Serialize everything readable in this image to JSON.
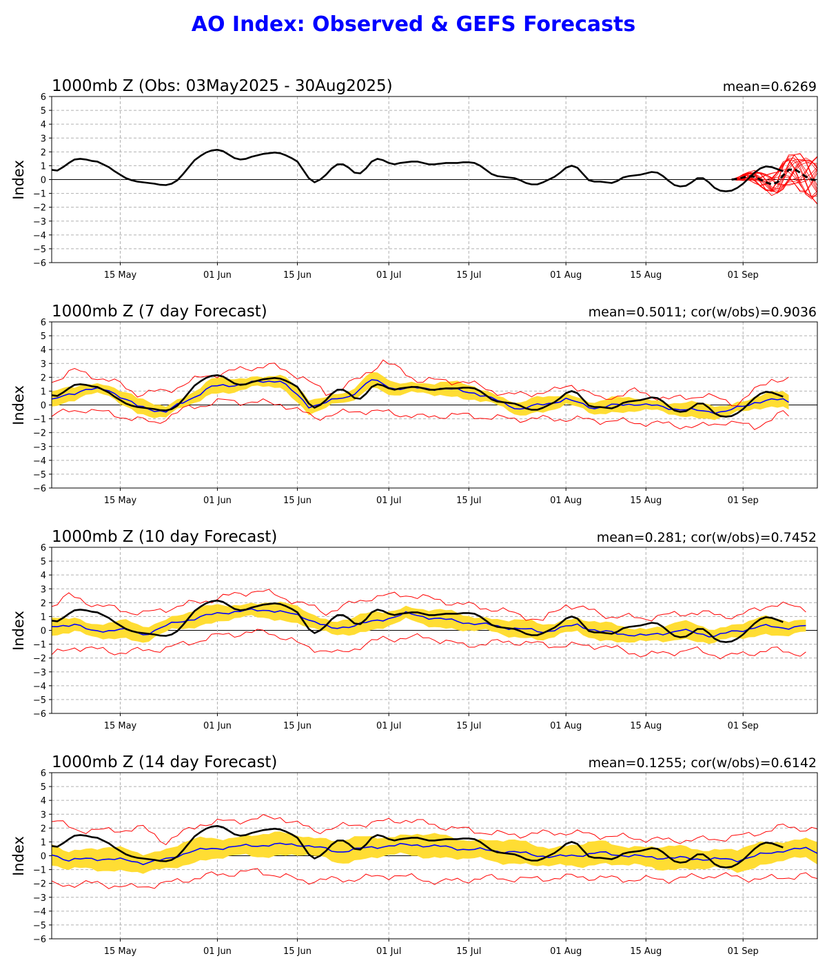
{
  "title": "AO Index: Observed & GEFS Forecasts",
  "colors": {
    "title": "#0000ff",
    "observed": "#000000",
    "ensemble_mean": "#0000ff",
    "spread_band": "#ffdd33",
    "extremes": "#ff0000",
    "grid": "#b0b0b0"
  },
  "chart_data": [
    {
      "type": "line",
      "title": "1000mb Z (Obs: 03May2025 - 30Aug2025)",
      "stat_text": "mean=0.6269",
      "ylabel": "Index",
      "ylim": [
        -6,
        6
      ],
      "yticks": [
        6,
        5,
        4,
        3,
        2,
        1,
        0,
        -1,
        -2,
        -3,
        -4,
        -5,
        -6
      ],
      "xlim": [
        "2025-05-03",
        "2025-09-14"
      ],
      "xticks": [
        {
          "date": "2025-05-15",
          "label": "15 May"
        },
        {
          "date": "2025-06-01",
          "label": "01 Jun"
        },
        {
          "date": "2025-06-15",
          "label": "15 Jun"
        },
        {
          "date": "2025-07-01",
          "label": "01 Jul"
        },
        {
          "date": "2025-07-15",
          "label": "15 Jul"
        },
        {
          "date": "2025-08-01",
          "label": "01 Aug"
        },
        {
          "date": "2025-08-15",
          "label": "15 Aug"
        },
        {
          "date": "2025-09-01",
          "label": "01 Sep"
        }
      ],
      "grid": true,
      "observed": {
        "start": "2025-05-03",
        "values": [
          0.7,
          0.65,
          0.9,
          1.2,
          1.45,
          1.5,
          1.45,
          1.35,
          1.3,
          1.1,
          0.9,
          0.6,
          0.35,
          0.1,
          -0.05,
          -0.15,
          -0.2,
          -0.25,
          -0.3,
          -0.38,
          -0.4,
          -0.3,
          -0.05,
          0.4,
          0.9,
          1.4,
          1.7,
          1.95,
          2.1,
          2.15,
          2.05,
          1.8,
          1.55,
          1.45,
          1.5,
          1.65,
          1.75,
          1.85,
          1.9,
          1.95,
          1.9,
          1.75,
          1.55,
          1.3,
          0.7,
          0.1,
          -0.2,
          0.0,
          0.35,
          0.8,
          1.1,
          1.1,
          0.85,
          0.5,
          0.45,
          0.8,
          1.3,
          1.5,
          1.4,
          1.2,
          1.1,
          1.2,
          1.25,
          1.3,
          1.3,
          1.2,
          1.1,
          1.1,
          1.15,
          1.2,
          1.2,
          1.2,
          1.25,
          1.25,
          1.2,
          1.0,
          0.7,
          0.4,
          0.25,
          0.2,
          0.15,
          0.1,
          -0.05,
          -0.25,
          -0.35,
          -0.35,
          -0.2,
          0.0,
          0.2,
          0.5,
          0.85,
          1.0,
          0.85,
          0.4,
          -0.05,
          -0.15,
          -0.15,
          -0.2,
          -0.25,
          -0.1,
          0.15,
          0.25,
          0.3,
          0.35,
          0.45,
          0.55,
          0.5,
          0.25,
          -0.1,
          -0.4,
          -0.5,
          -0.45,
          -0.2,
          0.1,
          0.1,
          -0.2,
          -0.6,
          -0.8,
          -0.85,
          -0.8,
          -0.6,
          -0.3,
          0.1,
          0.5,
          0.8,
          0.95,
          0.9,
          0.75,
          0.6
        ]
      },
      "forecast_members_start": "2025-08-30",
      "forecast_days": 16,
      "forecast_mean": [
        0.0,
        0.05,
        0.15,
        0.25,
        0.2,
        0.0,
        -0.2,
        -0.35,
        -0.2,
        0.3,
        0.7,
        0.75,
        0.5,
        0.2,
        0.0,
        -0.05,
        -0.1
      ]
    },
    {
      "type": "line",
      "title": "1000mb Z (7 day Forecast)",
      "stat_text": "mean=0.5011; cor(w/obs)=0.9036",
      "ylabel": "Index",
      "ylim": [
        -6,
        6
      ],
      "yticks": [
        6,
        5,
        4,
        3,
        2,
        1,
        0,
        -1,
        -2,
        -3,
        -4,
        -5,
        -6
      ],
      "xlim": [
        "2025-05-03",
        "2025-09-14"
      ],
      "grid": true,
      "forecast_start": "2025-05-03",
      "forecast_end": "2025-09-09",
      "ensemble_mean_keypoints": [
        [
          0,
          0.3
        ],
        [
          3,
          0.8
        ],
        [
          6,
          1.1
        ],
        [
          10,
          1.1
        ],
        [
          15,
          -0.1
        ],
        [
          20,
          -0.5
        ],
        [
          28,
          1.3
        ],
        [
          40,
          1.8
        ],
        [
          45,
          -0.1
        ],
        [
          52,
          0.6
        ],
        [
          56,
          1.8
        ],
        [
          60,
          1.2
        ],
        [
          68,
          1.2
        ],
        [
          74,
          0.9
        ],
        [
          82,
          -0.3
        ],
        [
          90,
          0.4
        ],
        [
          95,
          -0.2
        ],
        [
          102,
          0.1
        ],
        [
          108,
          -0.2
        ],
        [
          112,
          -0.4
        ],
        [
          118,
          -0.5
        ],
        [
          123,
          0.2
        ],
        [
          128,
          0.4
        ],
        [
          133,
          -0.3
        ]
      ],
      "spread_halfwidth": 0.45,
      "extreme_upper_keypoints": [
        [
          0,
          1.7
        ],
        [
          4,
          2.5
        ],
        [
          8,
          2.0
        ],
        [
          12,
          1.5
        ],
        [
          15,
          0.8
        ],
        [
          20,
          1.0
        ],
        [
          27,
          2.1
        ],
        [
          38,
          2.9
        ],
        [
          44,
          2.0
        ],
        [
          48,
          0.8
        ],
        [
          54,
          1.9
        ],
        [
          58,
          3.2
        ],
        [
          64,
          1.8
        ],
        [
          72,
          1.7
        ],
        [
          80,
          0.7
        ],
        [
          88,
          1.0
        ],
        [
          91,
          1.5
        ],
        [
          96,
          0.4
        ],
        [
          102,
          1.0
        ],
        [
          108,
          0.4
        ],
        [
          114,
          0.7
        ],
        [
          120,
          0.1
        ],
        [
          126,
          1.9
        ],
        [
          131,
          1.7
        ],
        [
          135,
          1.0
        ]
      ],
      "extreme_lower_keypoints": [
        [
          0,
          -0.7
        ],
        [
          6,
          -0.3
        ],
        [
          12,
          -0.8
        ],
        [
          18,
          -1.3
        ],
        [
          24,
          -0.2
        ],
        [
          30,
          0.3
        ],
        [
          40,
          0.1
        ],
        [
          46,
          -0.9
        ],
        [
          54,
          -0.4
        ],
        [
          60,
          -0.6
        ],
        [
          65,
          -0.9
        ],
        [
          70,
          -0.7
        ],
        [
          80,
          -1.0
        ],
        [
          90,
          -1.0
        ],
        [
          100,
          -1.2
        ],
        [
          108,
          -1.4
        ],
        [
          113,
          -1.6
        ],
        [
          118,
          -1.2
        ],
        [
          123,
          -1.6
        ],
        [
          128,
          -0.6
        ],
        [
          133,
          -1.5
        ],
        [
          136,
          -1.6
        ]
      ]
    },
    {
      "type": "line",
      "title": "1000mb Z (10 day Forecast)",
      "stat_text": "mean=0.281; cor(w/obs)=0.7452",
      "ylabel": "Index",
      "ylim": [
        -6,
        6
      ],
      "yticks": [
        6,
        5,
        4,
        3,
        2,
        1,
        0,
        -1,
        -2,
        -3,
        -4,
        -5,
        -6
      ],
      "xlim": [
        "2025-05-03",
        "2025-09-14"
      ],
      "grid": true,
      "forecast_start": "2025-05-03",
      "forecast_end": "2025-09-12",
      "ensemble_mean_keypoints": [
        [
          0,
          0.2
        ],
        [
          4,
          0.5
        ],
        [
          7,
          -0.1
        ],
        [
          12,
          0.1
        ],
        [
          16,
          -0.3
        ],
        [
          22,
          0.6
        ],
        [
          30,
          1.3
        ],
        [
          38,
          1.5
        ],
        [
          44,
          1.0
        ],
        [
          49,
          0.1
        ],
        [
          56,
          0.6
        ],
        [
          62,
          1.2
        ],
        [
          70,
          0.7
        ],
        [
          78,
          0.3
        ],
        [
          86,
          -0.1
        ],
        [
          92,
          0.4
        ],
        [
          96,
          -0.1
        ],
        [
          104,
          -0.4
        ],
        [
          110,
          0.0
        ],
        [
          116,
          -0.4
        ],
        [
          124,
          0.3
        ],
        [
          128,
          0.2
        ],
        [
          132,
          0.3
        ],
        [
          134,
          -0.3
        ],
        [
          138,
          0.5
        ]
      ],
      "spread_halfwidth": 0.55,
      "extreme_upper_keypoints": [
        [
          0,
          1.8
        ],
        [
          3,
          2.5
        ],
        [
          8,
          1.8
        ],
        [
          16,
          1.2
        ],
        [
          24,
          1.9
        ],
        [
          30,
          2.4
        ],
        [
          36,
          2.9
        ],
        [
          42,
          2.2
        ],
        [
          48,
          1.3
        ],
        [
          56,
          2.4
        ],
        [
          62,
          2.6
        ],
        [
          70,
          2.0
        ],
        [
          78,
          1.5
        ],
        [
          86,
          0.7
        ],
        [
          90,
          1.9
        ],
        [
          98,
          1.0
        ],
        [
          104,
          0.9
        ],
        [
          112,
          1.3
        ],
        [
          120,
          1.0
        ],
        [
          126,
          1.9
        ],
        [
          132,
          1.6
        ],
        [
          138,
          1.8
        ]
      ],
      "extreme_lower_keypoints": [
        [
          0,
          -1.8
        ],
        [
          4,
          -1.2
        ],
        [
          12,
          -1.6
        ],
        [
          20,
          -1.3
        ],
        [
          30,
          -0.3
        ],
        [
          38,
          -0.1
        ],
        [
          44,
          -1.1
        ],
        [
          50,
          -1.7
        ],
        [
          58,
          -0.6
        ],
        [
          66,
          -0.5
        ],
        [
          72,
          -1.1
        ],
        [
          80,
          -0.8
        ],
        [
          88,
          -1.1
        ],
        [
          96,
          -1.1
        ],
        [
          104,
          -1.8
        ],
        [
          112,
          -1.4
        ],
        [
          118,
          -1.9
        ],
        [
          126,
          -1.4
        ],
        [
          132,
          -1.7
        ],
        [
          138,
          -1.0
        ]
      ]
    },
    {
      "type": "line",
      "title": "1000mb Z (14 day Forecast)",
      "stat_text": "mean=0.1255; cor(w/obs)=0.6142",
      "ylabel": "Index",
      "ylim": [
        -6,
        6
      ],
      "yticks": [
        6,
        5,
        4,
        3,
        2,
        1,
        0,
        -1,
        -2,
        -3,
        -4,
        -5,
        -6
      ],
      "xlim": [
        "2025-05-03",
        "2025-09-14"
      ],
      "grid": true,
      "forecast_start": "2025-05-03",
      "forecast_end": "2025-09-14",
      "ensemble_mean_keypoints": [
        [
          0,
          0.1
        ],
        [
          3,
          -0.3
        ],
        [
          10,
          -0.2
        ],
        [
          16,
          -0.5
        ],
        [
          20,
          -0.3
        ],
        [
          24,
          0.3
        ],
        [
          30,
          0.6
        ],
        [
          38,
          0.8
        ],
        [
          44,
          0.8
        ],
        [
          50,
          0.3
        ],
        [
          58,
          0.7
        ],
        [
          64,
          0.8
        ],
        [
          72,
          0.5
        ],
        [
          80,
          0.3
        ],
        [
          88,
          -0.1
        ],
        [
          96,
          0.2
        ],
        [
          104,
          -0.1
        ],
        [
          112,
          -0.2
        ],
        [
          120,
          -0.3
        ],
        [
          128,
          0.4
        ],
        [
          132,
          0.5
        ],
        [
          136,
          0.1
        ],
        [
          140,
          -0.2
        ],
        [
          142,
          -0.3
        ]
      ],
      "spread_halfwidth": 0.75,
      "extreme_upper_keypoints": [
        [
          0,
          2.6
        ],
        [
          4,
          1.9
        ],
        [
          10,
          1.8
        ],
        [
          16,
          2.0
        ],
        [
          20,
          1.0
        ],
        [
          26,
          2.3
        ],
        [
          34,
          2.6
        ],
        [
          40,
          2.8
        ],
        [
          46,
          1.8
        ],
        [
          54,
          2.3
        ],
        [
          62,
          2.6
        ],
        [
          70,
          2.0
        ],
        [
          80,
          1.5
        ],
        [
          90,
          1.7
        ],
        [
          98,
          1.4
        ],
        [
          108,
          1.1
        ],
        [
          116,
          1.2
        ],
        [
          122,
          1.5
        ],
        [
          128,
          2.1
        ],
        [
          134,
          1.9
        ],
        [
          140,
          1.1
        ],
        [
          142,
          1.4
        ]
      ],
      "extreme_lower_keypoints": [
        [
          0,
          -2.1
        ],
        [
          8,
          -2.0
        ],
        [
          14,
          -2.3
        ],
        [
          20,
          -2.0
        ],
        [
          28,
          -1.4
        ],
        [
          36,
          -1.1
        ],
        [
          44,
          -1.8
        ],
        [
          52,
          -1.7
        ],
        [
          60,
          -1.4
        ],
        [
          68,
          -1.9
        ],
        [
          76,
          -1.6
        ],
        [
          84,
          -1.7
        ],
        [
          92,
          -1.5
        ],
        [
          100,
          -1.7
        ],
        [
          108,
          -1.7
        ],
        [
          116,
          -1.4
        ],
        [
          124,
          -1.7
        ],
        [
          132,
          -1.4
        ],
        [
          138,
          -2.6
        ],
        [
          142,
          -2.1
        ]
      ]
    }
  ]
}
